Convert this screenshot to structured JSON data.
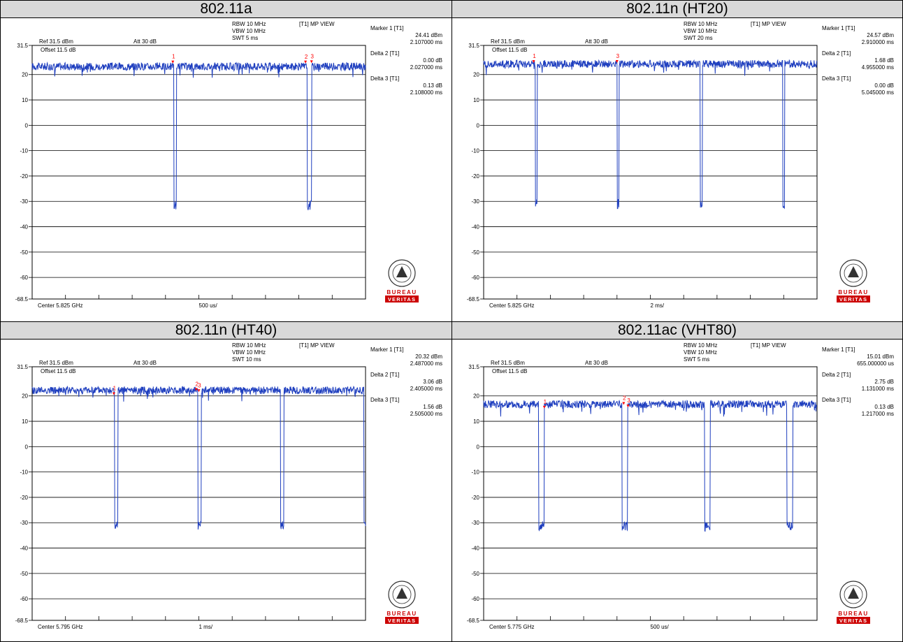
{
  "panels": [
    {
      "title": "802.11a",
      "settings": {
        "ref": "Ref 31.5 dBm",
        "att": "Att  30 dB",
        "offset": "Offset 11.5 dB",
        "rbw": "RBW 10 MHz",
        "vbw": "VBW 10 MHz",
        "swt": "SWT 5 ms",
        "view": "[T1] MP VIEW",
        "center": "Center 5.825 GHz",
        "span_div": "500 us/"
      },
      "markers": [
        {
          "label": "Marker 1 [T1]",
          "value1": "24.41 dBm",
          "value2": "2.107000 ms"
        },
        {
          "label": "Delta 2 [T1]",
          "value1": "0.00 dB",
          "value2": "2.027000 ms"
        },
        {
          "label": "Delta 3 [T1]",
          "value1": "0.13 dB",
          "value2": "2.108000 ms"
        }
      ],
      "marker_tags": [
        "1",
        "2 3"
      ]
    },
    {
      "title": "802.11n (HT20)",
      "settings": {
        "ref": "Ref 31.5 dBm",
        "att": "Att  30 dB",
        "offset": "Offset 11.5 dB",
        "rbw": "RBW 10 MHz",
        "vbw": "VBW 10 MHz",
        "swt": "SWT 20 ms",
        "view": "[T1] MP VIEW",
        "center": "Center 5.825 GHz",
        "span_div": "2 ms/"
      },
      "markers": [
        {
          "label": "Marker 1 [T1]",
          "value1": "24.57 dBm",
          "value2": "2.910000 ms"
        },
        {
          "label": "Delta 2 [T1]",
          "value1": "1.68 dB",
          "value2": "4.955000 ms"
        },
        {
          "label": "Delta 3 [T1]",
          "value1": "0.00 dB",
          "value2": "5.045000 ms"
        }
      ],
      "marker_tags": [
        "1",
        "3"
      ]
    },
    {
      "title": "802.11n (HT40)",
      "settings": {
        "ref": "Ref 31.5 dBm",
        "att": "Att  30 dB",
        "offset": "Offset 11.5 dB",
        "rbw": "RBW 10 MHz",
        "vbw": "VBW 10 MHz",
        "swt": "SWT 10 ms",
        "view": "[T1] MP VIEW",
        "center": "Center 5.795 GHz",
        "span_div": "1 ms/"
      },
      "markers": [
        {
          "label": "Marker 1 [T1]",
          "value1": "20.32 dBm",
          "value2": "2.487000 ms"
        },
        {
          "label": "Delta 2 [T1]",
          "value1": "3.06 dB",
          "value2": "2.405000 ms"
        },
        {
          "label": "Delta 3 [T1]",
          "value1": "1.56 dB",
          "value2": "2.505000 ms"
        }
      ],
      "marker_tags": [
        "1",
        "2 3"
      ]
    },
    {
      "title": "802.11ac (VHT80)",
      "settings": {
        "ref": "Ref 31.5 dBm",
        "att": "Att  30 dB",
        "offset": "Offset 11.5 dB",
        "rbw": "RBW 10 MHz",
        "vbw": "VBW 10 MHz",
        "swt": "SWT 5 ms",
        "view": "[T1] MP VIEW",
        "center": "Center 5.775 GHz",
        "span_div": "500 us/"
      },
      "markers": [
        {
          "label": "Marker 1 [T1]",
          "value1": "15.01 dBm",
          "value2": "655.000000 us"
        },
        {
          "label": "Delta 2 [T1]",
          "value1": "2.75 dB",
          "value2": "1.131000 ms"
        },
        {
          "label": "Delta 3 [T1]",
          "value1": "0.13 dB",
          "value2": "1.217000 ms"
        }
      ],
      "marker_tags": [
        "1",
        "2 3"
      ]
    }
  ],
  "logo": {
    "top": "BUREAU",
    "bottom": "VERITAS"
  },
  "colors": {
    "trace": "#1f3fbf",
    "marker": "#ff0000",
    "logo": "#cc0000"
  },
  "chart_data": [
    {
      "type": "line",
      "title": "802.11a",
      "y_ticks": [
        "31.5",
        "20",
        "10",
        "0",
        "-10",
        "-20",
        "-30",
        "-40",
        "-50",
        "-60",
        "-68.5"
      ],
      "ylim": [
        -68.5,
        31.5
      ],
      "xlim": [
        0,
        10
      ],
      "x_divisions": 10,
      "grid": true,
      "series": [
        {
          "baseline": 23.5,
          "gap_level": -31.5,
          "gaps": [
            [
              4.25,
              4.33
            ],
            [
              8.25,
              8.38
            ]
          ]
        }
      ],
      "markers": [
        {
          "id": "1",
          "x": 4.22,
          "y": 24.41
        },
        {
          "id": "2",
          "x": 8.2,
          "y": 24.4
        },
        {
          "id": "3",
          "x": 8.38,
          "y": 24.5
        }
      ]
    },
    {
      "type": "line",
      "title": "802.11n (HT20)",
      "y_ticks": [
        "31.5",
        "20",
        "10",
        "0",
        "-10",
        "-20",
        "-30",
        "-40",
        "-50",
        "-60",
        "-68.5"
      ],
      "ylim": [
        -68.5,
        31.5
      ],
      "xlim": [
        0,
        10
      ],
      "x_divisions": 10,
      "grid": true,
      "series": [
        {
          "baseline": 24.5,
          "gap_level": -31.0,
          "gaps": [
            [
              1.55,
              1.6
            ],
            [
              4.01,
              4.06
            ],
            [
              6.5,
              6.56
            ],
            [
              8.97,
              9.03
            ]
          ]
        }
      ],
      "markers": [
        {
          "id": "1",
          "x": 1.5,
          "y": 24.57
        },
        {
          "id": "3",
          "x": 4.0,
          "y": 24.6
        }
      ]
    },
    {
      "type": "line",
      "title": "802.11n (HT40)",
      "y_ticks": [
        "31.5",
        "20",
        "10",
        "0",
        "-10",
        "-20",
        "-30",
        "-40",
        "-50",
        "-60",
        "-68.5"
      ],
      "ylim": [
        -68.5,
        31.5
      ],
      "xlim": [
        0,
        10
      ],
      "x_divisions": 10,
      "grid": true,
      "series": [
        {
          "baseline": 22.5,
          "gap_level": -31.0,
          "gaps": [
            [
              2.47,
              2.57
            ],
            [
              4.97,
              5.07
            ],
            [
              7.45,
              7.55
            ],
            [
              9.95,
              10.0
            ]
          ]
        }
      ],
      "markers": [
        {
          "id": "1",
          "x": 2.45,
          "y": 20.32
        },
        {
          "id": "2",
          "x": 4.92,
          "y": 22.0
        },
        {
          "id": "3",
          "x": 5.0,
          "y": 21.5
        }
      ]
    },
    {
      "type": "line",
      "title": "802.11ac (VHT80)",
      "y_ticks": [
        "31.5",
        "20",
        "10",
        "0",
        "-10",
        "-20",
        "-30",
        "-40",
        "-50",
        "-60",
        "-68.5"
      ],
      "ylim": [
        -68.5,
        31.5
      ],
      "xlim": [
        0,
        10
      ],
      "x_divisions": 10,
      "grid": true,
      "series": [
        {
          "baseline": 17.0,
          "gap_level": -31.5,
          "gaps": [
            [
              1.65,
              1.82
            ],
            [
              4.15,
              4.32
            ],
            [
              6.63,
              6.8
            ],
            [
              9.1,
              9.27
            ]
          ]
        }
      ],
      "markers": [
        {
          "id": "1",
          "x": 1.82,
          "y": 15.01
        },
        {
          "id": "2",
          "x": 4.2,
          "y": 16.5
        },
        {
          "id": "3",
          "x": 4.33,
          "y": 15.5
        }
      ]
    }
  ]
}
